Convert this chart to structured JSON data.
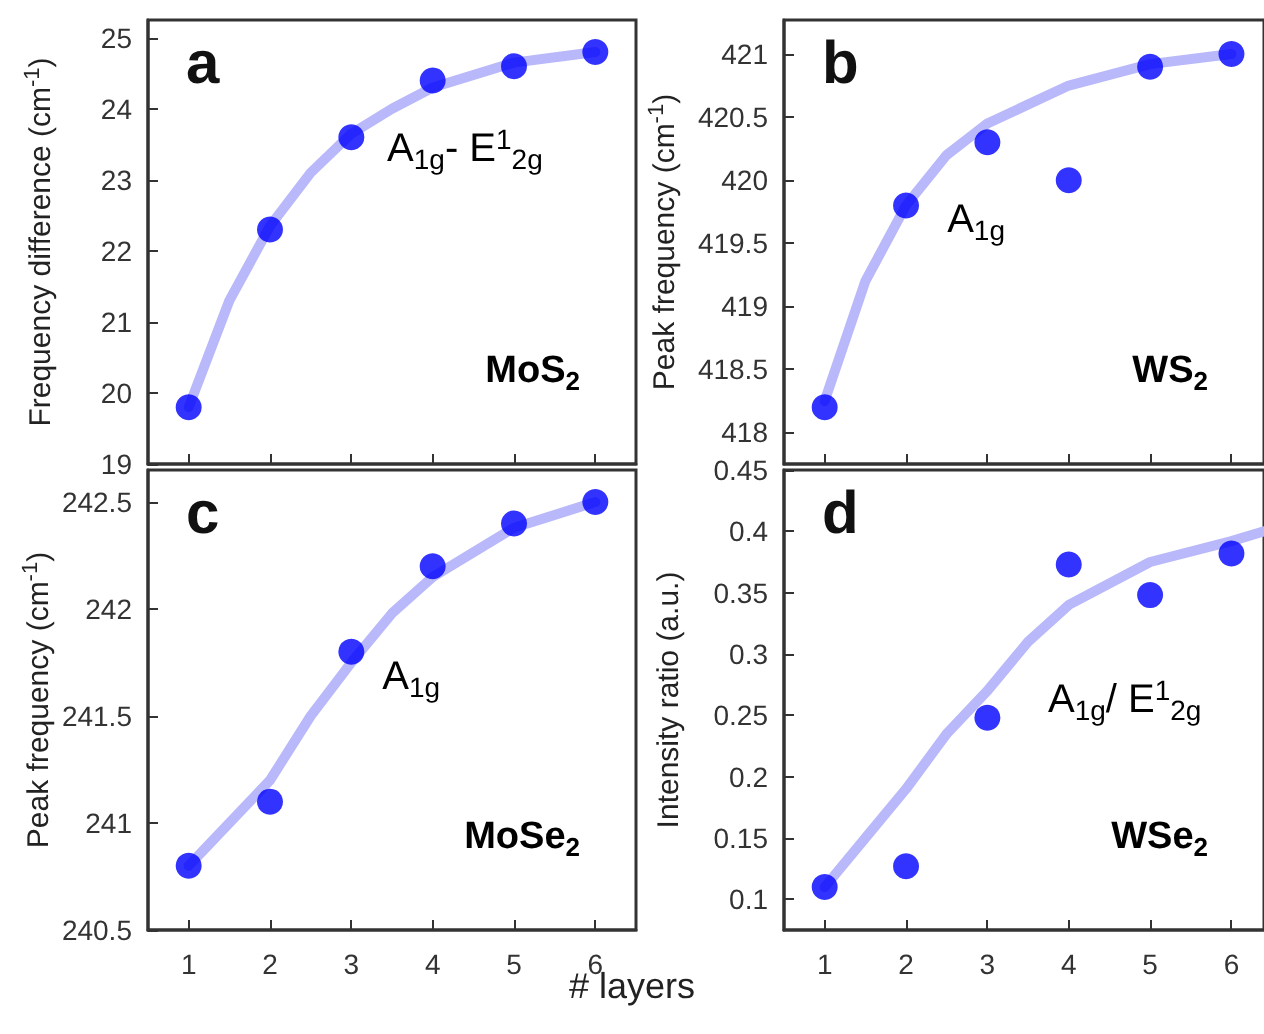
{
  "chart_data": [
    {
      "type": "scatter",
      "title": "a",
      "ylabel": "Frequency difference (cm$^{-1}$)",
      "annotations": [
        "A$_{1g}$- E$^{1}$$_{2g}$",
        "MoS$_{2}$"
      ],
      "x": [
        1,
        2,
        3,
        4,
        5,
        6
      ],
      "xlim": [
        0.5,
        6.5
      ],
      "xticks": [
        1,
        2,
        3,
        4,
        5,
        6
      ],
      "ylim": [
        19,
        25.25
      ],
      "yticks": [
        19,
        20,
        21,
        22,
        23,
        24,
        25
      ],
      "tick_labels": "y",
      "marker": "circle",
      "series": [
        {
          "type": "scatter",
          "color": "#0000ff",
          "values": [
            19.8,
            22.3,
            23.6,
            24.4,
            24.6,
            24.8
          ]
        },
        {
          "type": "line",
          "color": "#b8b8fa",
          "marker": "none",
          "x": [
            1,
            1.5,
            2,
            2.5,
            3,
            3.5,
            4,
            5,
            6
          ],
          "values": [
            19.8,
            21.3,
            22.35,
            23.1,
            23.65,
            24.0,
            24.3,
            24.65,
            24.8
          ]
        }
      ]
    },
    {
      "type": "scatter",
      "title": "b",
      "ylabel": "Peak frequency (cm$^{-1}$)",
      "annotations": [
        "A$_{1g}$",
        "WS$_{2}$"
      ],
      "x": [
        1,
        2,
        3,
        4,
        5,
        6
      ],
      "xlim": [
        0.5,
        6.4
      ],
      "xticks": [
        1,
        2,
        3,
        4,
        5,
        6
      ],
      "ylim": [
        417.75,
        421.27
      ],
      "yticks": [
        418,
        418.5,
        419,
        419.5,
        420,
        420.5,
        421
      ],
      "tick_labels": "y",
      "marker": "circle",
      "series": [
        {
          "type": "scatter",
          "color": "#0000ff",
          "values": [
            418.2,
            419.8,
            420.3,
            420.0,
            420.9,
            421.0
          ]
        },
        {
          "type": "line",
          "color": "#b8b8fa",
          "marker": "none",
          "x": [
            1,
            1.5,
            2,
            2.5,
            3,
            4,
            5,
            6
          ],
          "values": [
            418.25,
            419.2,
            419.8,
            420.2,
            420.45,
            420.75,
            420.92,
            421.0
          ]
        }
      ]
    },
    {
      "type": "scatter",
      "title": "c",
      "ylabel": "Peak frequency (cm$^{-1}$)",
      "xlabel": "# layers",
      "annotations": [
        "A$_{1g}$",
        "MoSe$_{2}$"
      ],
      "x": [
        1,
        2,
        3,
        4,
        5,
        6
      ],
      "xlim": [
        0.5,
        6.5
      ],
      "xticks": [
        1,
        2,
        3,
        4,
        5,
        6
      ],
      "ylim": [
        240.5,
        242.65
      ],
      "yticks": [
        240.5,
        241,
        241.5,
        242,
        242.5
      ],
      "marker": "circle",
      "series": [
        {
          "type": "scatter",
          "color": "#0000ff",
          "values": [
            240.8,
            241.1,
            241.8,
            242.2,
            242.4,
            242.5
          ]
        },
        {
          "type": "line",
          "color": "#b8b8fa",
          "marker": "none",
          "x": [
            1,
            2,
            2.5,
            3,
            3.5,
            4,
            5,
            6
          ],
          "values": [
            240.8,
            241.2,
            241.5,
            241.75,
            241.98,
            242.15,
            242.38,
            242.5
          ]
        }
      ]
    },
    {
      "type": "scatter",
      "title": "d",
      "ylabel": "Intensity ratio (a.u.)",
      "annotations": [
        "A$_{1g}$/ E$^{1}$$_{2g}$",
        "WSe$_{2}$"
      ],
      "x": [
        1,
        2,
        3,
        4,
        5,
        6
      ],
      "xlim": [
        0.5,
        6.4
      ],
      "xticks": [
        1,
        2,
        3,
        4,
        5,
        6
      ],
      "ylim": [
        0.075,
        0.45
      ],
      "yticks": [
        0.1,
        0.15,
        0.2,
        0.25,
        0.3,
        0.35,
        0.4,
        0.45
      ],
      "marker": "circle",
      "series": [
        {
          "type": "scatter",
          "color": "#0000ff",
          "values": [
            0.11,
            0.127,
            0.248,
            0.373,
            0.348,
            0.382
          ]
        },
        {
          "type": "line",
          "color": "#b8b8fa",
          "marker": "none",
          "x": [
            1,
            1.5,
            2,
            2.5,
            3,
            3.5,
            4,
            5,
            6,
            6.4
          ],
          "values": [
            0.11,
            0.15,
            0.19,
            0.235,
            0.27,
            0.31,
            0.34,
            0.375,
            0.392,
            0.4
          ]
        }
      ]
    }
  ]
}
